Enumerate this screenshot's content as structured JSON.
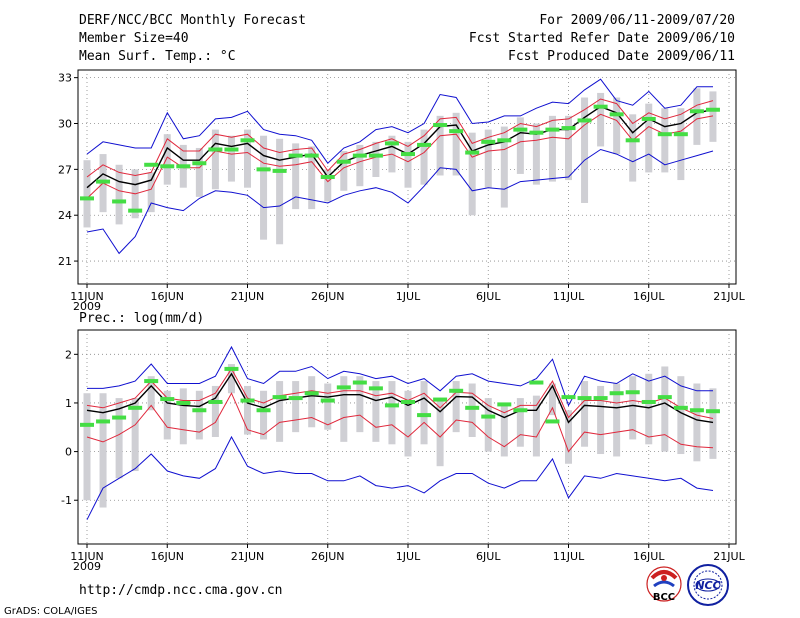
{
  "header": {
    "title": "DERF/NCC/BCC Monthly Forecast",
    "member_size": "Member Size=40",
    "for_period": "For 2009/06/11-2009/07/20",
    "fcst_started": "Fcst Started Refer Date 2009/06/10",
    "fcst_produced": "Fcst Produced Date 2009/06/11"
  },
  "footer": {
    "url": "http://cmdp.ncc.cma.gov.cn",
    "grads": "GrADS: COLA/IGES",
    "logo_bcc": "BCC",
    "logo_ncc": "NCC"
  },
  "colors": {
    "bar": "#cfcfd4",
    "obs": "#44dd44",
    "mean": "#000000",
    "inner": "#e0283c",
    "outer": "#1010d0",
    "grid": "#888888"
  },
  "chart_data": [
    {
      "id": "temp",
      "type": "line",
      "title": "Mean Surf. Temp.: °C",
      "x_tick_labels": [
        "11JUN",
        "16JUN",
        "21JUN",
        "26JUN",
        "1JUL",
        "6JUL",
        "11JUL",
        "16JUL",
        "21JUL"
      ],
      "x_year_label": "2009",
      "xlim": [
        0,
        40
      ],
      "ylim": [
        19.5,
        33.5
      ],
      "yticks": [
        21,
        24,
        27,
        30,
        33
      ],
      "grid": true,
      "x": [
        0,
        1,
        2,
        3,
        4,
        5,
        6,
        7,
        8,
        9,
        10,
        11,
        12,
        13,
        14,
        15,
        16,
        17,
        18,
        19,
        20,
        21,
        22,
        23,
        24,
        25,
        26,
        27,
        28,
        29,
        30,
        31,
        32,
        33,
        34,
        35,
        36,
        37,
        38,
        39
      ],
      "series": [
        {
          "name": "ensemble mean",
          "role": "mean",
          "values": [
            25.8,
            26.7,
            26.2,
            26.0,
            26.3,
            28.4,
            27.6,
            27.6,
            28.7,
            28.5,
            28.7,
            27.9,
            27.6,
            27.8,
            28.0,
            26.5,
            27.5,
            27.9,
            28.2,
            28.5,
            28.0,
            28.7,
            29.8,
            29.9,
            28.2,
            28.6,
            28.8,
            29.4,
            29.3,
            29.6,
            29.6,
            30.4,
            31.1,
            30.7,
            29.4,
            30.3,
            29.8,
            30.0,
            30.7,
            30.9
          ]
        },
        {
          "name": "upper inner",
          "role": "inner",
          "values": [
            26.5,
            27.3,
            26.8,
            26.6,
            26.8,
            29.0,
            28.2,
            28.2,
            29.3,
            29.1,
            29.3,
            28.4,
            28.1,
            28.3,
            28.4,
            26.9,
            28.0,
            28.3,
            28.7,
            29.0,
            28.5,
            29.2,
            30.3,
            30.4,
            28.7,
            29.1,
            29.4,
            30.0,
            29.8,
            30.2,
            30.3,
            30.9,
            31.6,
            31.3,
            30.0,
            30.7,
            30.3,
            30.6,
            31.2,
            31.5
          ]
        },
        {
          "name": "lower inner",
          "role": "inner",
          "values": [
            25.1,
            26.1,
            25.6,
            25.4,
            25.7,
            27.8,
            27.1,
            27.1,
            28.2,
            28.0,
            28.1,
            27.4,
            27.2,
            27.3,
            27.5,
            26.2,
            27.1,
            27.5,
            27.8,
            28.0,
            27.5,
            28.1,
            29.2,
            29.3,
            27.8,
            28.2,
            28.3,
            28.8,
            28.9,
            29.1,
            29.0,
            29.9,
            30.6,
            30.2,
            28.9,
            29.8,
            29.3,
            29.5,
            30.3,
            30.5
          ]
        },
        {
          "name": "max",
          "role": "outer",
          "values": [
            28.0,
            28.8,
            28.6,
            28.4,
            28.4,
            30.7,
            29.0,
            29.2,
            30.3,
            30.4,
            30.8,
            29.6,
            29.3,
            29.2,
            28.9,
            27.4,
            28.4,
            28.8,
            29.6,
            29.8,
            29.4,
            30.0,
            31.9,
            31.7,
            30.0,
            30.1,
            30.5,
            30.5,
            31.0,
            31.4,
            31.3,
            32.2,
            32.9,
            31.5,
            31.2,
            32.1,
            31.0,
            31.2,
            32.4,
            32.4
          ]
        },
        {
          "name": "min",
          "role": "outer",
          "values": [
            22.9,
            23.1,
            21.5,
            22.6,
            24.8,
            24.5,
            24.3,
            25.1,
            25.6,
            25.5,
            25.3,
            24.5,
            24.6,
            25.2,
            25.0,
            24.8,
            25.3,
            25.6,
            25.8,
            25.5,
            24.8,
            25.9,
            27.1,
            27.0,
            25.6,
            25.8,
            25.7,
            26.2,
            26.3,
            26.4,
            26.5,
            27.6,
            28.3,
            28.0,
            27.5,
            28.0,
            27.3,
            27.6,
            27.9,
            28.2
          ]
        }
      ],
      "spread_bars": {
        "low": [
          23.2,
          24.2,
          23.4,
          23.8,
          24.2,
          26.0,
          25.8,
          25.2,
          25.7,
          26.2,
          25.8,
          22.4,
          22.1,
          24.4,
          24.4,
          24.9,
          25.6,
          25.9,
          26.5,
          26.8,
          25.8,
          26.0,
          26.6,
          26.6,
          24.0,
          25.8,
          24.5,
          26.7,
          26.0,
          26.2,
          26.3,
          24.8,
          28.5,
          28.0,
          26.2,
          26.8,
          26.8,
          26.3,
          28.6,
          28.8
        ],
        "high": [
          27.6,
          28.0,
          27.3,
          27.0,
          26.8,
          29.3,
          28.6,
          28.4,
          29.6,
          29.2,
          29.6,
          29.2,
          29.0,
          28.7,
          28.5,
          27.0,
          28.2,
          28.6,
          28.8,
          29.2,
          28.8,
          29.6,
          30.5,
          30.7,
          29.4,
          29.6,
          29.8,
          30.4,
          30.0,
          30.5,
          30.5,
          31.7,
          32.0,
          31.7,
          30.6,
          31.3,
          31.0,
          31.0,
          32.3,
          32.1
        ]
      },
      "observed": [
        25.1,
        26.2,
        24.9,
        24.3,
        27.3,
        27.2,
        27.2,
        27.4,
        28.3,
        28.3,
        28.9,
        27.0,
        26.9,
        27.9,
        27.9,
        26.5,
        27.5,
        27.9,
        27.9,
        28.7,
        28.0,
        28.6,
        29.9,
        29.5,
        28.1,
        28.8,
        28.9,
        29.6,
        29.4,
        29.6,
        29.7,
        30.2,
        31.1,
        30.6,
        28.9,
        30.3,
        29.3,
        29.3,
        30.8,
        30.9
      ]
    },
    {
      "id": "prec",
      "type": "line",
      "title": "Prec.: log(mm/d)",
      "x_tick_labels": [
        "11JUN",
        "16JUN",
        "21JUN",
        "26JUN",
        "1JUL",
        "6JUL",
        "11JUL",
        "16JUL",
        "21JUL"
      ],
      "x_year_label": "2009",
      "xlim": [
        0,
        40
      ],
      "ylim": [
        -1.9,
        2.5
      ],
      "yticks": [
        -1,
        0,
        1,
        2
      ],
      "grid": true,
      "x": [
        0,
        1,
        2,
        3,
        4,
        5,
        6,
        7,
        8,
        9,
        10,
        11,
        12,
        13,
        14,
        15,
        16,
        17,
        18,
        19,
        20,
        21,
        22,
        23,
        24,
        25,
        26,
        27,
        28,
        29,
        30,
        31,
        32,
        33,
        34,
        35,
        36,
        37,
        38,
        39
      ],
      "series": [
        {
          "name": "ensemble mean",
          "role": "mean",
          "values": [
            0.85,
            0.8,
            0.88,
            1.0,
            1.35,
            1.0,
            0.95,
            0.93,
            1.1,
            1.6,
            1.0,
            0.9,
            1.05,
            1.1,
            1.15,
            1.12,
            1.17,
            1.17,
            1.05,
            1.12,
            0.95,
            1.1,
            0.82,
            1.13,
            1.12,
            0.85,
            0.7,
            0.85,
            0.85,
            1.35,
            0.6,
            0.95,
            0.93,
            0.9,
            0.95,
            0.9,
            1.0,
            0.8,
            0.65,
            0.6
          ]
        },
        {
          "name": "upper inner",
          "role": "inner",
          "values": [
            0.95,
            0.9,
            1.0,
            1.1,
            1.45,
            1.1,
            1.05,
            1.05,
            1.2,
            1.7,
            1.1,
            1.0,
            1.15,
            1.2,
            1.25,
            1.2,
            1.25,
            1.25,
            1.15,
            1.2,
            1.05,
            1.2,
            0.9,
            1.22,
            1.2,
            0.95,
            0.8,
            0.95,
            0.95,
            1.45,
            0.7,
            1.05,
            1.05,
            1.0,
            1.05,
            1.0,
            1.1,
            0.9,
            0.75,
            0.68
          ]
        },
        {
          "name": "lower inner",
          "role": "inner",
          "values": [
            0.3,
            0.2,
            0.35,
            0.55,
            0.95,
            0.5,
            0.45,
            0.4,
            0.6,
            1.2,
            0.45,
            0.35,
            0.6,
            0.65,
            0.7,
            0.55,
            0.7,
            0.75,
            0.5,
            0.55,
            0.3,
            0.6,
            0.3,
            0.65,
            0.6,
            0.3,
            0.1,
            0.35,
            0.3,
            0.9,
            0.0,
            0.4,
            0.35,
            0.4,
            0.45,
            0.3,
            0.35,
            0.15,
            0.1,
            0.08
          ]
        },
        {
          "name": "max",
          "role": "outer",
          "values": [
            1.3,
            1.3,
            1.35,
            1.45,
            1.8,
            1.4,
            1.4,
            1.4,
            1.55,
            2.15,
            1.5,
            1.4,
            1.65,
            1.65,
            1.75,
            1.5,
            1.65,
            1.6,
            1.5,
            1.55,
            1.4,
            1.5,
            1.25,
            1.55,
            1.6,
            1.45,
            1.4,
            1.35,
            1.5,
            1.9,
            0.95,
            1.55,
            1.45,
            1.4,
            1.6,
            1.45,
            1.55,
            1.35,
            1.25,
            1.25
          ]
        },
        {
          "name": "min",
          "role": "outer",
          "values": [
            -1.4,
            -0.75,
            -0.55,
            -0.35,
            -0.05,
            -0.4,
            -0.5,
            -0.55,
            -0.35,
            0.3,
            -0.3,
            -0.45,
            -0.4,
            -0.45,
            -0.45,
            -0.6,
            -0.6,
            -0.5,
            -0.7,
            -0.75,
            -0.7,
            -0.85,
            -0.6,
            -0.45,
            -0.45,
            -0.65,
            -0.75,
            -0.6,
            -0.6,
            -0.15,
            -0.95,
            -0.5,
            -0.55,
            -0.45,
            -0.5,
            -0.55,
            -0.6,
            -0.55,
            -0.75,
            -0.8
          ]
        }
      ],
      "spread_bars": {
        "low": [
          -1.0,
          -1.15,
          -0.55,
          -0.4,
          0.85,
          0.25,
          0.15,
          0.25,
          0.3,
          1.2,
          0.35,
          0.25,
          0.2,
          0.4,
          0.5,
          0.45,
          0.2,
          0.4,
          0.2,
          0.15,
          -0.1,
          0.15,
          -0.3,
          0.4,
          0.3,
          0.0,
          -0.1,
          0.1,
          -0.1,
          0.75,
          -0.25,
          0.1,
          -0.05,
          -0.1,
          0.25,
          0.15,
          0.0,
          -0.05,
          -0.2,
          -0.15
        ],
        "high": [
          1.2,
          1.2,
          1.1,
          1.1,
          1.55,
          1.25,
          1.3,
          1.25,
          1.35,
          1.8,
          1.35,
          1.25,
          1.45,
          1.45,
          1.55,
          1.4,
          1.55,
          1.55,
          1.45,
          1.45,
          1.25,
          1.45,
          1.1,
          1.45,
          1.4,
          1.1,
          1.0,
          1.1,
          1.15,
          1.4,
          0.85,
          1.45,
          1.35,
          1.4,
          1.55,
          1.6,
          1.75,
          1.55,
          1.4,
          1.3
        ]
      },
      "observed": [
        0.55,
        0.62,
        0.7,
        0.9,
        1.45,
        1.08,
        1.0,
        0.85,
        1.02,
        1.7,
        1.05,
        0.85,
        1.12,
        1.1,
        1.2,
        1.05,
        1.32,
        1.42,
        1.3,
        0.95,
        1.02,
        0.75,
        1.07,
        1.25,
        0.9,
        0.72,
        0.97,
        0.85,
        1.42,
        0.62,
        1.12,
        1.1,
        1.1,
        1.2,
        1.22,
        1.02,
        1.12,
        0.9,
        0.85,
        0.83
      ]
    }
  ]
}
